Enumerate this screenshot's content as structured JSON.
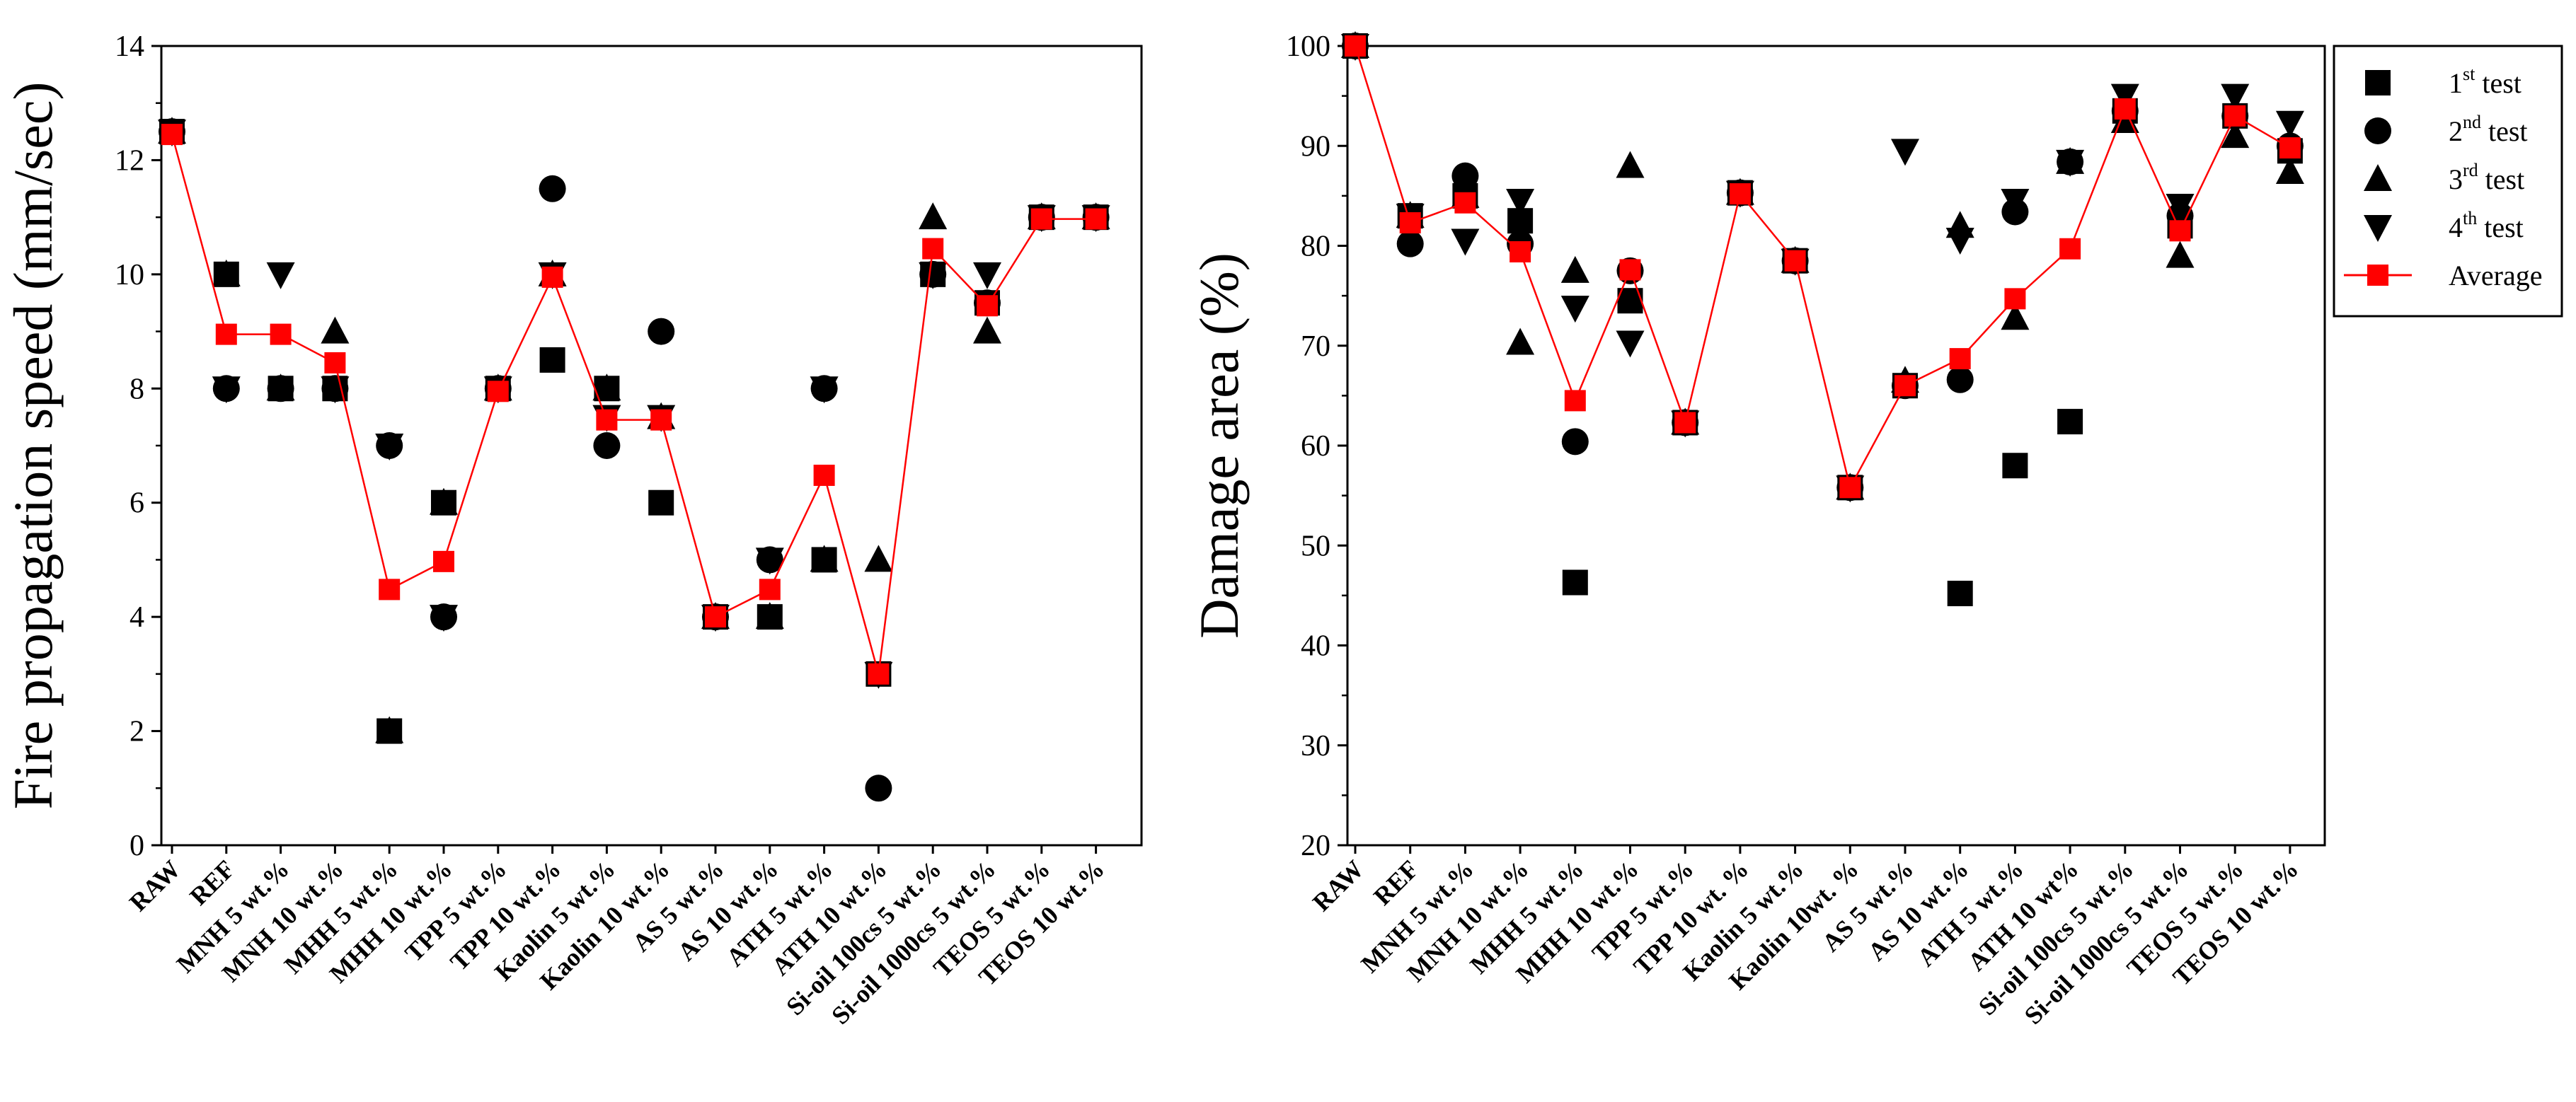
{
  "chart_data": [
    {
      "type": "scatter",
      "title": "",
      "xlabel": "",
      "ylabel": "Fire propagation speed (mm/sec)",
      "ylim": [
        0,
        14
      ],
      "yticks": [
        0,
        2,
        4,
        6,
        8,
        10,
        12,
        14
      ],
      "categories": [
        "RAW",
        "REF",
        "MNH 5 wt.%",
        "MNH 10 wt.%",
        "MHH 5 wt.%",
        "MHH 10 wt.%",
        "TPP 5 wt.%",
        "TPP 10 wt.%",
        "Kaolin 5 wt.%",
        "Kaolin 10 wt.%",
        "AS 5 wt.%",
        "AS 10 wt.%",
        "ATH 5 wt.%",
        "ATH 10 wt.%",
        "Si-oil 100cs 5 wt.%",
        "Si-oil 1000cs 5 wt.%",
        "TEOS 5 wt.%",
        "TEOS 10 wt.%"
      ],
      "series": [
        {
          "name": "1st test",
          "marker": "square",
          "values": [
            12.5,
            10,
            8,
            8,
            2,
            6,
            8,
            8.5,
            8,
            6,
            4,
            4,
            5,
            3,
            10,
            9.5,
            11,
            11
          ]
        },
        {
          "name": "2nd test",
          "marker": "circle",
          "values": [
            12.5,
            8,
            8,
            8,
            7,
            4,
            8,
            11.5,
            7,
            9,
            4,
            5,
            8,
            1,
            10,
            9.5,
            11,
            11
          ]
        },
        {
          "name": "3rd test",
          "marker": "triangle-up",
          "values": [
            12.5,
            10,
            8,
            9,
            2,
            6,
            8,
            10,
            8,
            7.5,
            4,
            4,
            5,
            5,
            11,
            9,
            11,
            11
          ]
        },
        {
          "name": "4th test",
          "marker": "triangle-down",
          "values": [
            12.5,
            8,
            10,
            8,
            7,
            4,
            8,
            10,
            7.5,
            7.5,
            4,
            5,
            8,
            3,
            10,
            10,
            11,
            11
          ]
        },
        {
          "name": "Average",
          "marker": "square-line",
          "color": "#ff0000",
          "values": [
            12.45,
            8.95,
            8.95,
            8.45,
            4.48,
            4.97,
            7.95,
            9.95,
            7.45,
            7.45,
            4.0,
            4.48,
            6.48,
            3.0,
            10.45,
            9.45,
            10.97,
            10.97
          ]
        }
      ]
    },
    {
      "type": "scatter",
      "title": "",
      "xlabel": "",
      "ylabel": "Damage area (%)",
      "ylim": [
        20,
        100
      ],
      "yticks": [
        20,
        30,
        40,
        50,
        60,
        70,
        80,
        90,
        100
      ],
      "categories": [
        "RAW",
        "REF",
        "MNH 5 wt.%",
        "MNH 10 wt.%",
        "MHH 5 wt.%",
        "MHH 10 wt.%",
        "TPP 5 wt.%",
        "TPP 10 wt. %",
        "Kaolin 5 wt.%",
        "Kaolin 10wt. %",
        "AS 5 wt.%",
        "AS 10 wt.%",
        "ATH 5 wt.%",
        "ATH 10 wt%",
        "Si-oil 100cs 5 wt.%",
        "Si-oil 1000cs 5 wt.%",
        "TEOS 5 wt.%",
        "TEOS 10 wt.%"
      ],
      "series": [
        {
          "name": "1st test",
          "marker": "square",
          "values": [
            100,
            83,
            85,
            82.5,
            46.3,
            74.5,
            62.3,
            85.3,
            78.5,
            55.8,
            66,
            45.2,
            58,
            62.4,
            93.5,
            82,
            93,
            89.5
          ]
        },
        {
          "name": "2nd test",
          "marker": "circle",
          "values": [
            100,
            80.2,
            87,
            80.2,
            60.4,
            77.5,
            62.3,
            85.3,
            78.5,
            55.8,
            66,
            66.6,
            83.4,
            88.4,
            93.5,
            83,
            93,
            90
          ]
        },
        {
          "name": "3rd test",
          "marker": "triangle-up",
          "values": [
            100,
            83,
            85,
            70.3,
            77.5,
            88,
            62.3,
            85.3,
            78.5,
            55.8,
            66.5,
            82,
            72.8,
            88.4,
            92.5,
            79,
            91,
            87.4
          ]
        },
        {
          "name": "4th test",
          "marker": "triangle-down",
          "values": [
            100,
            83,
            80.5,
            84.5,
            73.8,
            70.3,
            62.3,
            85.3,
            78.5,
            55.8,
            89.5,
            80.6,
            84.5,
            88.4,
            95,
            84,
            95,
            92.3
          ]
        },
        {
          "name": "Average",
          "marker": "square-line",
          "color": "#ff0000",
          "values": [
            100,
            82.3,
            84.3,
            79.4,
            64.5,
            77.6,
            62.3,
            85.2,
            78.5,
            55.8,
            66,
            68.7,
            74.7,
            79.7,
            93.7,
            81.5,
            93,
            89.8
          ]
        }
      ],
      "legend": {
        "placement": "top-right-outside",
        "entries": [
          {
            "base": "1",
            "sup": "st",
            "rest": " test",
            "marker": "square"
          },
          {
            "base": "2",
            "sup": "nd",
            "rest": " test",
            "marker": "circle"
          },
          {
            "base": "3",
            "sup": "rd",
            "rest": " test",
            "marker": "triangle-up"
          },
          {
            "base": "4",
            "sup": "th",
            "rest": " test",
            "marker": "triangle-down"
          },
          {
            "base": "Average",
            "sup": "",
            "rest": "",
            "marker": "square-line"
          }
        ]
      }
    }
  ]
}
